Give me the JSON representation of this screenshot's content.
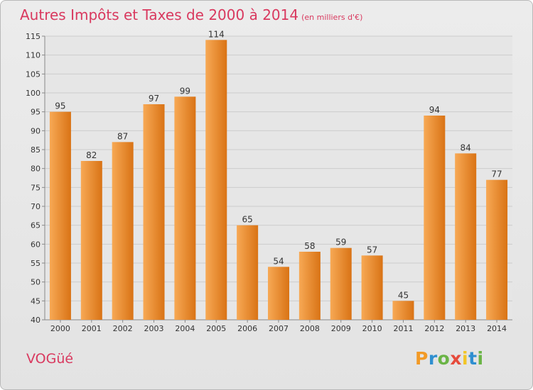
{
  "title": "Autres Impôts et Taxes de 2000 à 2014",
  "subtitle": "(en milliers d'€)",
  "commune": "VOGüé",
  "logo": {
    "p": "P",
    "r": "r",
    "o": "o",
    "x": "x",
    "i1": "i",
    "t": "t",
    "i2": "i"
  },
  "colors": {
    "bar_light": "#f7a955",
    "bar_dark": "#d97315",
    "title": "#d9395f",
    "grid": "#cccccc"
  },
  "chart_data": {
    "type": "bar",
    "categories": [
      "2000",
      "2001",
      "2002",
      "2003",
      "2004",
      "2005",
      "2006",
      "2007",
      "2008",
      "2009",
      "2010",
      "2011",
      "2012",
      "2013",
      "2014"
    ],
    "values": [
      95,
      82,
      87,
      97,
      99,
      114,
      65,
      54,
      58,
      59,
      57,
      45,
      94,
      84,
      77
    ],
    "ylim": [
      40,
      115
    ],
    "yticks": [
      40,
      45,
      50,
      55,
      60,
      65,
      70,
      75,
      80,
      85,
      90,
      95,
      100,
      105,
      110,
      115
    ],
    "grid": true,
    "title": "Autres Impôts et Taxes de 2000 à 2014",
    "xlabel": "",
    "ylabel": ""
  }
}
